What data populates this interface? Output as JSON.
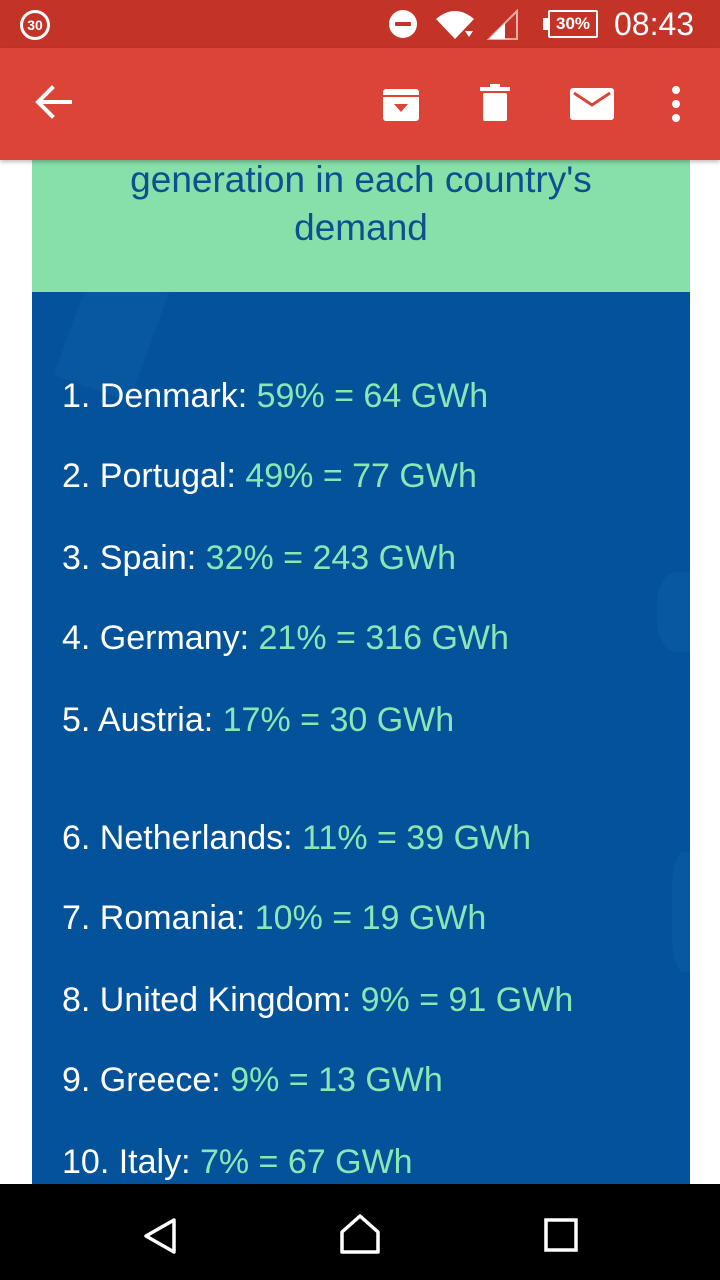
{
  "status_bar": {
    "notification_count": "30",
    "battery": "30%",
    "time": "08:43"
  },
  "app_bar": {
    "icons": [
      "back-arrow-icon",
      "archive-icon",
      "trash-icon",
      "mail-icon",
      "more-vert-icon"
    ]
  },
  "card": {
    "header_text_line1": "generation in each country's",
    "header_text_line2": "demand",
    "items": [
      {
        "label": "1. Denmark: ",
        "value": "59% = 64 GWh"
      },
      {
        "label": "2. Portugal: ",
        "value": "49% = 77 GWh"
      },
      {
        "label": "3. Spain: ",
        "value": "32% = 243 GWh"
      },
      {
        "label": "4. Germany: ",
        "value": "21% = 316 GWh"
      },
      {
        "label": "5. Austria: ",
        "value": "17% = 30 GWh"
      },
      {
        "label": "6. Netherlands: ",
        "value": "11% = 39 GWh"
      },
      {
        "label": "7. Romania: ",
        "value": "10% = 19 GWh"
      },
      {
        "label": "8. United Kingdom: ",
        "value": "9% = 91 GWh"
      },
      {
        "label": "9. Greece: ",
        "value": "9% = 13 GWh"
      },
      {
        "label": "10. Italy: ",
        "value": "7% = 67 GWh"
      }
    ]
  },
  "colors": {
    "status_bar": "#c43328",
    "app_bar": "#db4437",
    "header_bg": "#85e0a9",
    "header_text": "#0e4f8f",
    "body_bg": "#04529a",
    "value_text": "#8be6b3"
  },
  "nav_bar": {
    "icons": [
      "nav-back-icon",
      "nav-home-icon",
      "nav-recents-icon"
    ]
  }
}
